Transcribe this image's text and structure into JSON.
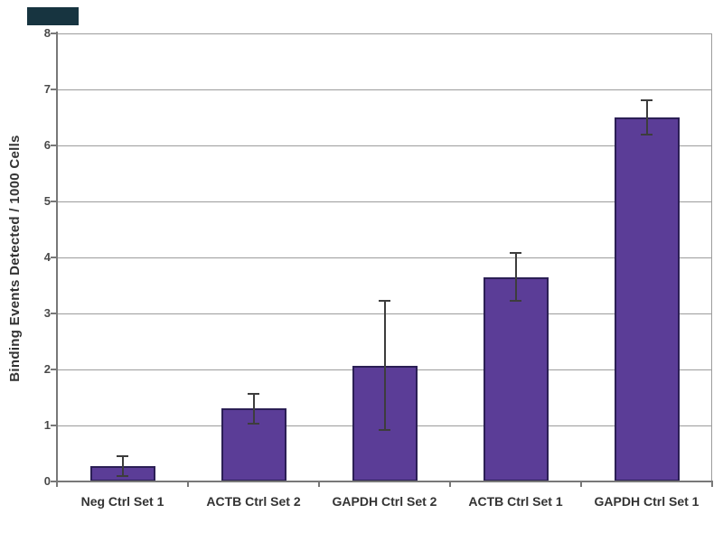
{
  "artifact": {
    "color": "#173440"
  },
  "chart_data": {
    "type": "bar",
    "title": "",
    "categories": [
      "Neg Ctrl Set 1",
      "ACTB Ctrl Set 2",
      "GAPDH Ctrl Set 2",
      "ACTB Ctrl Set 1",
      "GAPDH Ctrl Set 1"
    ],
    "values": [
      0.27,
      1.3,
      2.07,
      3.65,
      6.5
    ],
    "errors": [
      0.18,
      0.27,
      1.15,
      0.43,
      0.3
    ],
    "xlabel": "",
    "ylabel": "Binding Events Detected / 1000 Cells",
    "ylim": [
      0,
      8
    ],
    "yticks": [
      0,
      1,
      2,
      3,
      4,
      5,
      6,
      7,
      8
    ],
    "grid": true,
    "legend": false,
    "bar_color": "#5b3d97",
    "bar_border_color": "#2b1f55",
    "error_color": "#3d3d3d",
    "grid_color": "#9c9c9c",
    "axis_color": "#787878",
    "tick_label_color": "#4a4a4a",
    "category_label_color": "#333333"
  }
}
